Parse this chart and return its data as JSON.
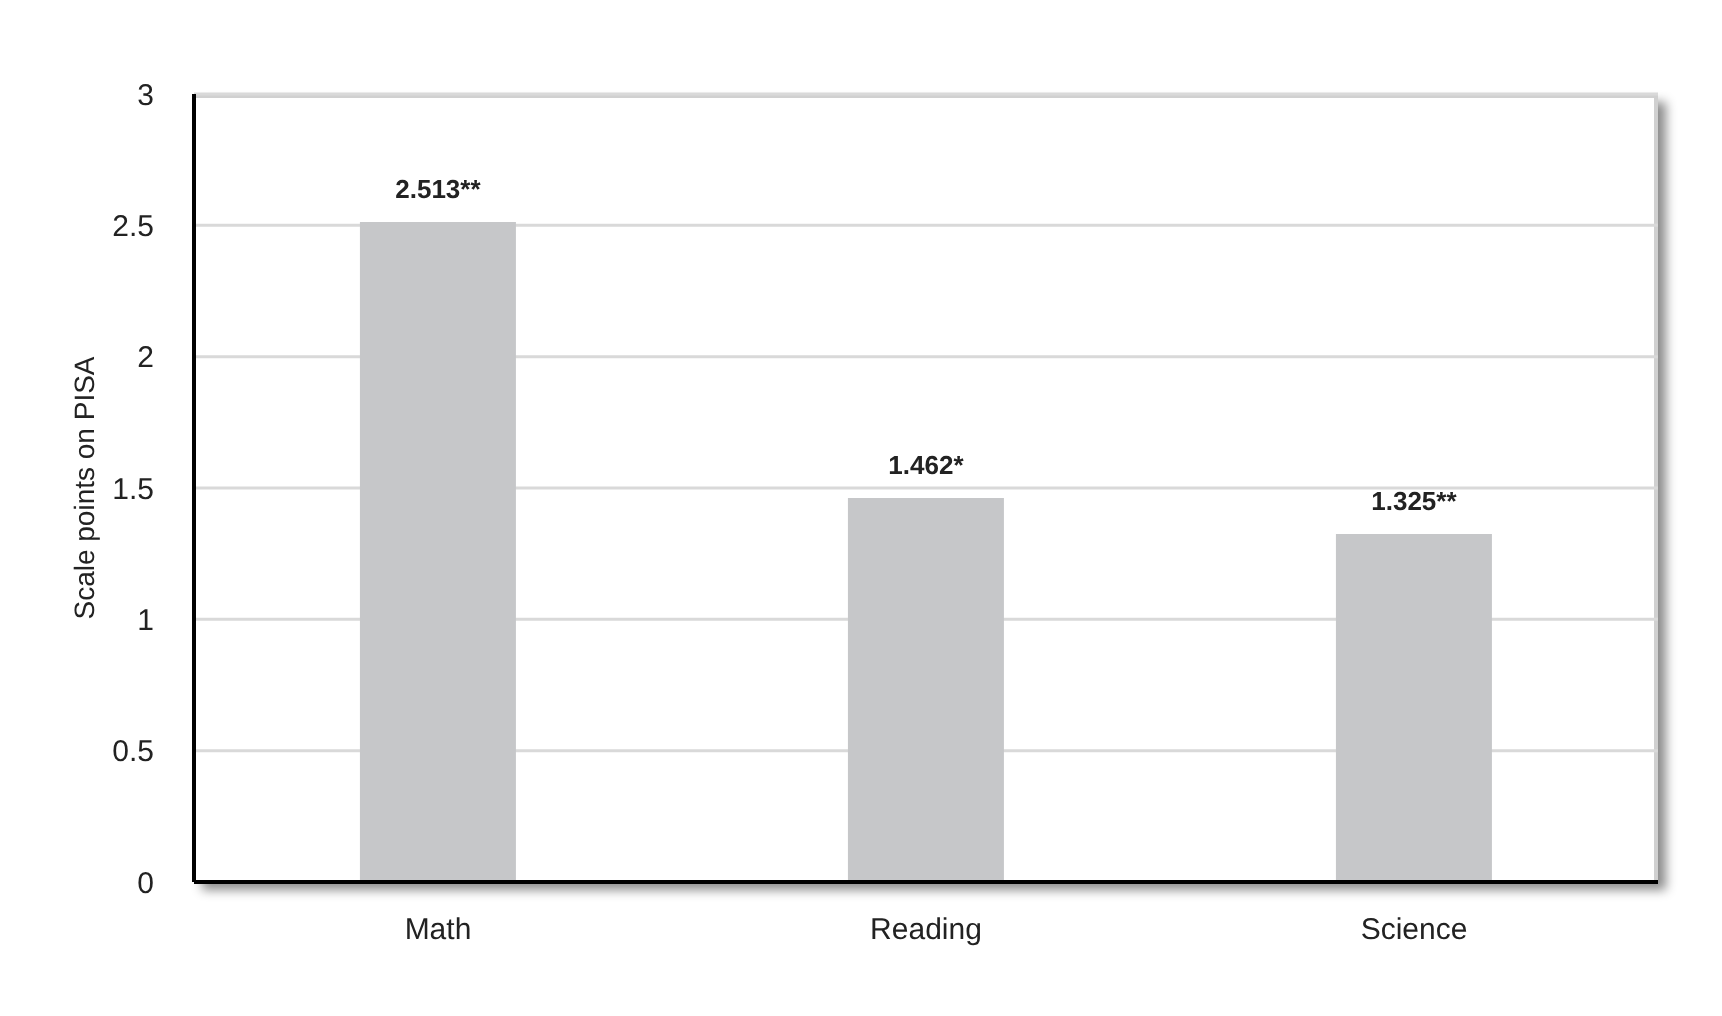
{
  "chart_data": {
    "type": "bar",
    "ylabel": "Scale points on PISA",
    "categories": [
      "Math",
      "Reading",
      "Science"
    ],
    "values": [
      2.513,
      1.462,
      1.325
    ],
    "value_labels": [
      "2.513**",
      "1.462*",
      "1.325**"
    ],
    "color": "#c6c7c9",
    "ylim": [
      0,
      3
    ],
    "yticks": [
      0,
      0.5,
      1,
      1.5,
      2,
      2.5,
      3
    ],
    "grid": "y"
  }
}
